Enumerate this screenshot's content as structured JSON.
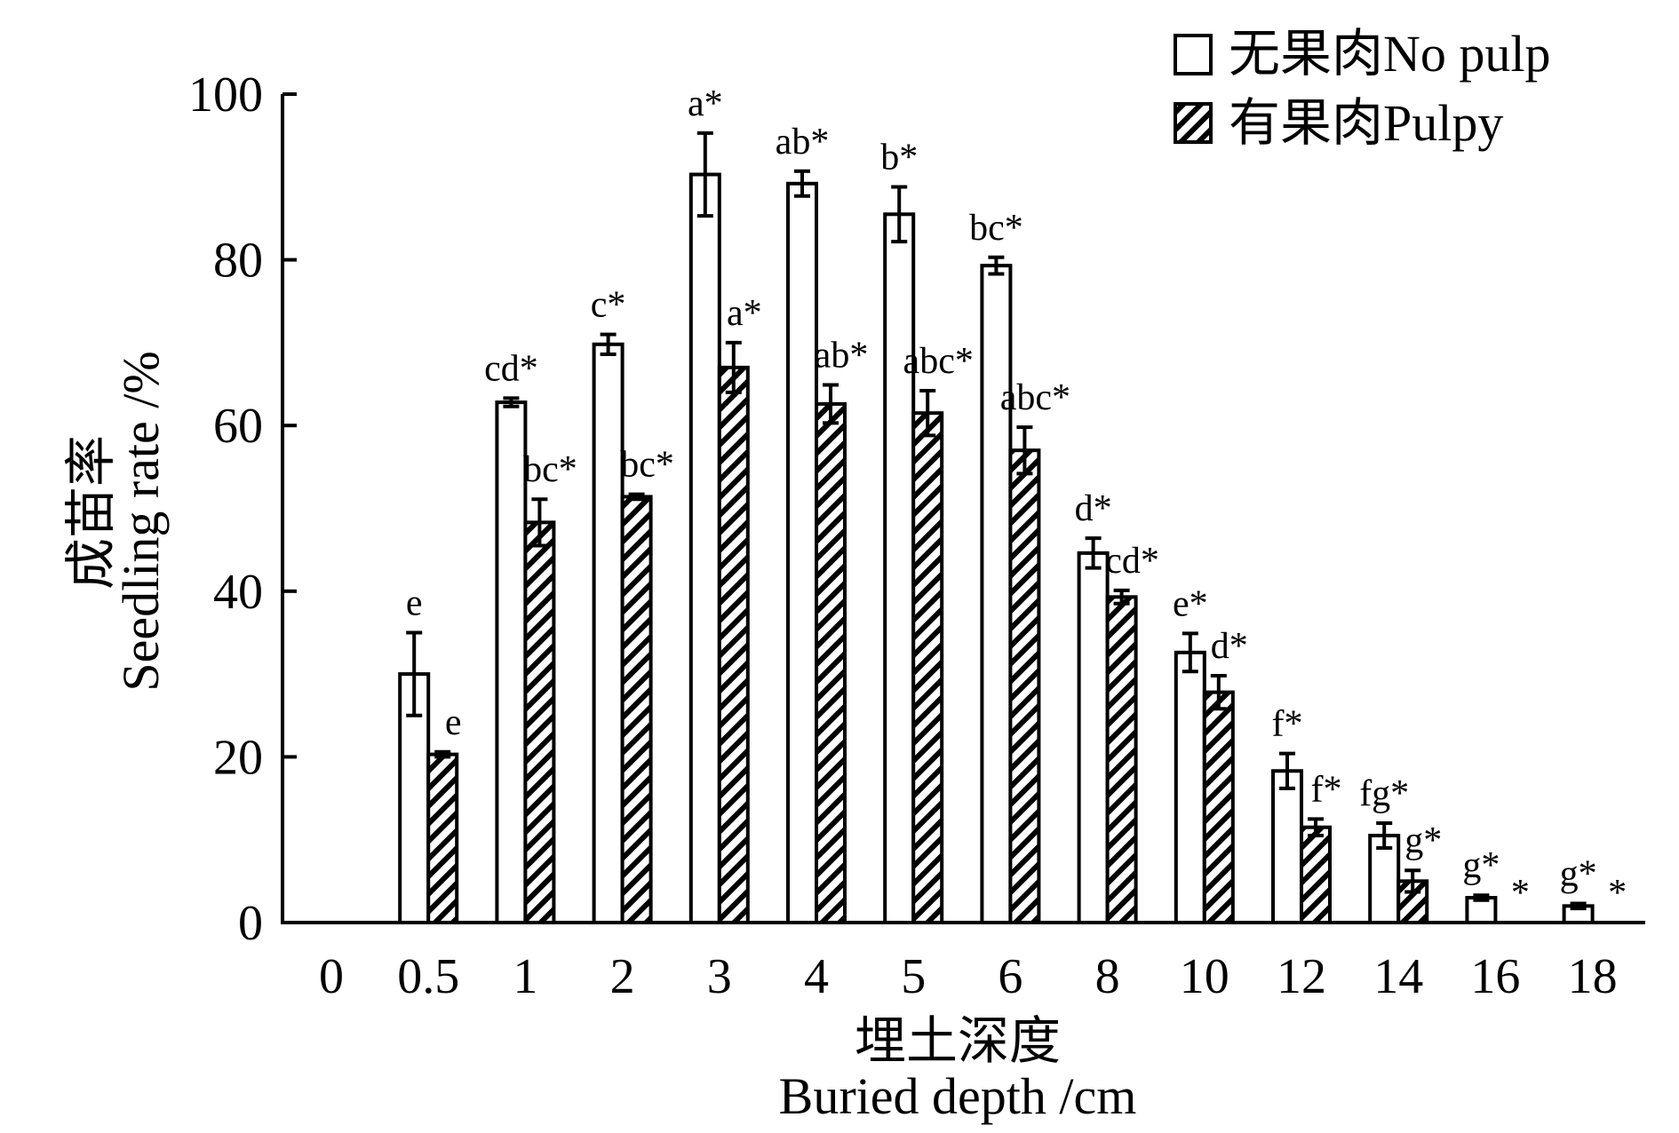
{
  "chart_data": {
    "type": "bar",
    "xlabel_cn": "埋土深度",
    "xlabel_en": "Buried depth /cm",
    "ylabel_cn": "成苗率",
    "ylabel_en": "Seedling rate /%",
    "ylim": [
      0,
      100
    ],
    "yticks": [
      "0",
      "20",
      "40",
      "60",
      "80",
      "100"
    ],
    "categories": [
      "0",
      "0.5",
      "1",
      "2",
      "3",
      "4",
      "5",
      "6",
      "8",
      "10",
      "12",
      "14",
      "16",
      "18"
    ],
    "legend_position": "top-right",
    "series": [
      {
        "name": "无果肉No pulp",
        "pattern": "open",
        "values": [
          0,
          30,
          62.8,
          69.8,
          90.3,
          89.2,
          85.5,
          79.3,
          44.6,
          32.6,
          18.3,
          10.5,
          3.0,
          2.0
        ],
        "errors": [
          0,
          5.0,
          0.5,
          1.2,
          5.0,
          1.5,
          3.3,
          1.0,
          1.8,
          2.3,
          2.1,
          1.5,
          0.3,
          0.3
        ],
        "labels": [
          "",
          "e",
          "cd*",
          "c*",
          "a*",
          "ab*",
          "b*",
          "bc*",
          "d*",
          "e*",
          "f*",
          "fg*",
          "g*",
          "g*"
        ]
      },
      {
        "name": "有果肉Pulpy",
        "pattern": "hatched",
        "values": [
          0,
          20.3,
          48.3,
          51.4,
          67.0,
          62.6,
          61.5,
          57.0,
          39.3,
          27.8,
          11.5,
          5.0,
          0,
          0
        ],
        "errors": [
          0,
          0.3,
          2.8,
          0.3,
          3.0,
          2.3,
          2.7,
          2.8,
          0.8,
          2.0,
          1.0,
          1.3,
          0,
          0
        ],
        "labels": [
          "",
          "e",
          "bc*",
          "bc*",
          "a*",
          "ab*",
          "abc*",
          "abc*",
          "cd*",
          "d*",
          "f*",
          "g*",
          "*",
          "*"
        ]
      }
    ]
  }
}
